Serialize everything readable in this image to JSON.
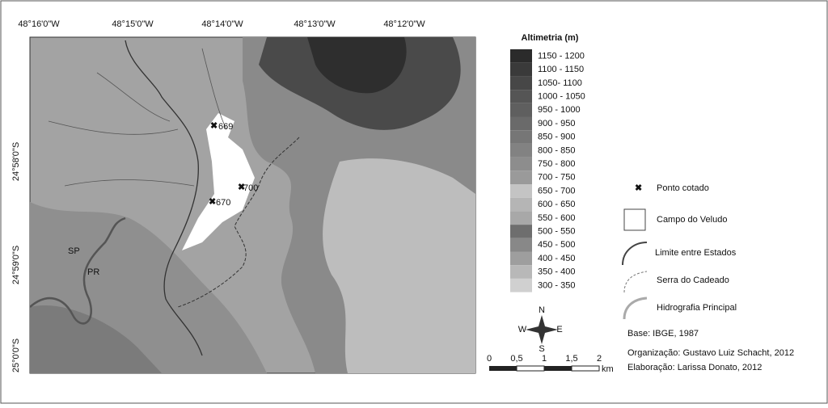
{
  "coords": {
    "top": [
      "48°16'0\"W",
      "48°15'0\"W",
      "48°14'0\"W",
      "48°13'0\"W",
      "48°12'0\"W"
    ],
    "left": [
      "24°58'0\"S",
      "24°59'0\"S",
      "25°0'0\"S"
    ]
  },
  "map_labels": {
    "points": [
      "669",
      "700",
      "670"
    ],
    "states": [
      "SP",
      "PR"
    ]
  },
  "altimetry": {
    "title": "Altimetria (m)",
    "classes": [
      {
        "label": "1150 - 1200",
        "color": "#2b2b2b"
      },
      {
        "label": "1100 - 1150",
        "color": "#3a3a3a"
      },
      {
        "label": "1050- 1100",
        "color": "#474747"
      },
      {
        "label": "1000 - 1050",
        "color": "#555555"
      },
      {
        "label": "950 - 1000",
        "color": "#5f5f5f"
      },
      {
        "label": "900 - 950",
        "color": "#6a6a6a"
      },
      {
        "label": "850 - 900",
        "color": "#767676"
      },
      {
        "label": "800 - 850",
        "color": "#828282"
      },
      {
        "label": "750 - 800",
        "color": "#8d8d8d"
      },
      {
        "label": "700 - 750",
        "color": "#9a9a9a"
      },
      {
        "label": "650 - 700",
        "color": "#c4c4c4"
      },
      {
        "label": "600 - 650",
        "color": "#b5b5b5"
      },
      {
        "label": "550 - 600",
        "color": "#a8a8a8"
      },
      {
        "label": "500 - 550",
        "color": "#6e6e6e"
      },
      {
        "label": "450 - 500",
        "color": "#888888"
      },
      {
        "label": "400 - 450",
        "color": "#9e9e9e"
      },
      {
        "label": "350 - 400",
        "color": "#b8b8b8"
      },
      {
        "label": "300 - 350",
        "color": "#d0d0d0"
      }
    ]
  },
  "legend": [
    "Ponto cotado",
    "Campo do Veludo",
    "Limite entre Estados",
    "Serra do Cadeado",
    "Hidrografia Principal"
  ],
  "compass": [
    "N",
    "S",
    "W",
    "E"
  ],
  "scale": [
    "0",
    "0,5",
    "1",
    "1,5",
    "2",
    "km"
  ],
  "credits": [
    "Base: IBGE, 1987",
    "Organização: Gustavo Luiz Schacht, 2012",
    "Elaboração: Larissa Donato, 2012"
  ]
}
